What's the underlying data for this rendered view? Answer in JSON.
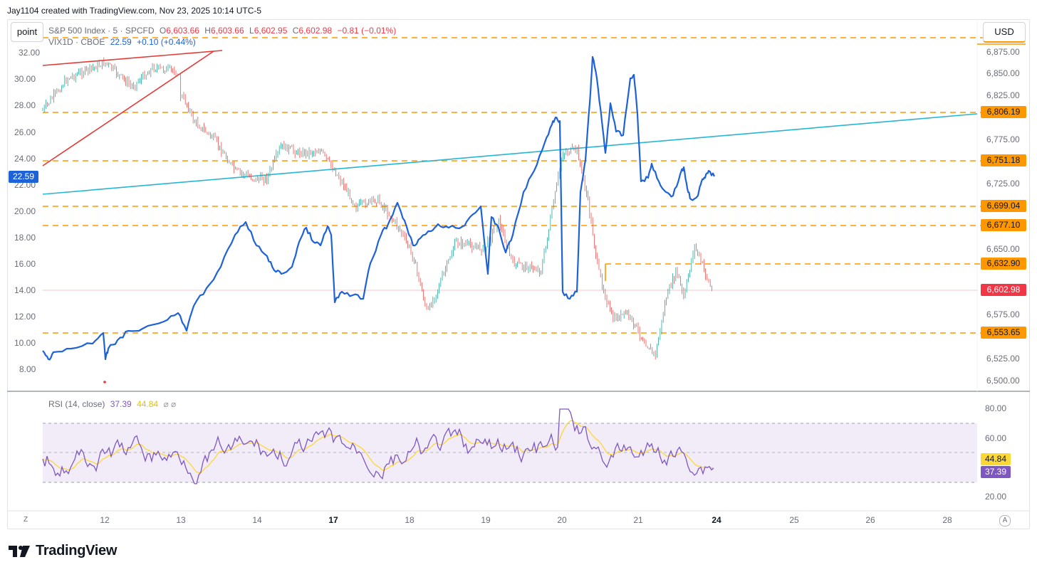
{
  "credit": "Jay1104 created with TradingView.com, Nov 23, 2025 10:14 UTC-5",
  "toolbar": {
    "point_label": "point",
    "currency_label": "USD"
  },
  "legend": {
    "main": {
      "symbol": "S&P 500 Index · 5 · SPCFD",
      "o_label": "O",
      "o_value": "6,603.66",
      "h_label": "H",
      "h_value": "6,603.66",
      "l_label": "L",
      "l_value": "6,602.95",
      "c_label": "C",
      "c_value": "6,602.98",
      "change": "−0.81 (−0.01%)"
    },
    "vix": {
      "symbol": "VIX1D · CBOE",
      "value": "22.59",
      "change": "+0.10 (+0.44%)"
    },
    "rsi": {
      "label": "RSI (14, close)",
      "rsi_value": "37.39",
      "ma_value": "44.84",
      "icons": "⌀ ⌀"
    }
  },
  "left_axis": {
    "ticks": [
      "32.00",
      "30.00",
      "28.00",
      "26.00",
      "24.00",
      "22.00",
      "20.00",
      "18.00",
      "16.00",
      "14.00",
      "12.00",
      "10.00",
      "8.00"
    ],
    "current_badge": "22.59"
  },
  "right_axis": {
    "ticks": [
      "6,875.00",
      "6,850.00",
      "6,825.00",
      "6,775.00",
      "6,725.00",
      "6,650.00",
      "6,575.00",
      "6,525.00",
      "6,500.00"
    ],
    "levels": [
      "6,806.19",
      "6,751.18",
      "6,699.04",
      "6,677.10",
      "6,632.90",
      "6,553.65"
    ],
    "current_price": "6,602.98"
  },
  "rsi_axis": {
    "ticks": [
      "80.00",
      "60.00",
      "20.00"
    ],
    "ma_badge": "44.84",
    "rsi_badge": "37.39"
  },
  "time_axis": {
    "labels": [
      "12",
      "13",
      "14",
      "17",
      "18",
      "19",
      "20",
      "21",
      "24",
      "25",
      "26",
      "28"
    ],
    "zoom_label": "Z",
    "auto_label": "A"
  },
  "brand": {
    "logo_text": "TradingView",
    "logo_icon": "tradingview-logo-icon"
  },
  "colors": {
    "level_orange": "#ff9800",
    "price_red": "#f23645",
    "vix_blue": "#1e62d8",
    "trend_cyan": "#26b6d4",
    "rsi_purple": "#7e57c2",
    "rsi_ma_yellow": "#fdd835",
    "up_green": "#26a69a",
    "down_red": "#ef5350"
  }
}
